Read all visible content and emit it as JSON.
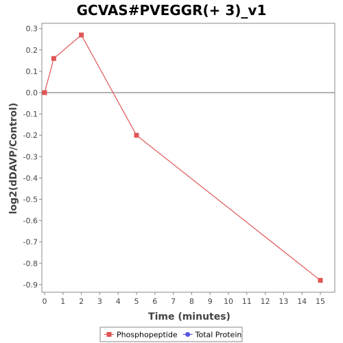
{
  "chart_data": {
    "type": "line",
    "title": "GCVAS#PVEGGR(+ 3)_v1",
    "xlabel": "Time (minutes)",
    "ylabel": "log2(dDAVP/Control)",
    "xlim": [
      0,
      16
    ],
    "ylim": [
      -0.95,
      0.33
    ],
    "xticks": [
      0,
      1,
      2,
      3,
      4,
      5,
      6,
      7,
      8,
      9,
      10,
      11,
      12,
      13,
      14,
      15
    ],
    "xtick_labels": [
      "0",
      "1",
      "2",
      "3",
      "4",
      "5",
      "6",
      "7",
      "8",
      "9",
      "10",
      "11",
      "12",
      "13",
      "14",
      "15"
    ],
    "yticks": [
      0.3,
      0.2,
      0.1,
      0.0,
      -0.1,
      -0.2,
      -0.3,
      -0.4,
      -0.5,
      -0.6,
      -0.7,
      -0.8,
      -0.9
    ],
    "ytick_labels": [
      "0.3",
      "0.2",
      "0.1",
      "0.0",
      "-0.1",
      "-0.2",
      "-0.3",
      "-0.4",
      "-0.5",
      "-0.6",
      "-0.7",
      "-0.8",
      "-0.9"
    ],
    "grid": false,
    "zero_line": true,
    "legend_position": "bottom-center",
    "series": [
      {
        "name": "Phosphopeptide",
        "color": "#e05555",
        "marker": "square",
        "x": [
          0,
          0.5,
          2,
          5,
          15
        ],
        "y": [
          0.0,
          0.16,
          0.27,
          -0.2,
          -0.88
        ]
      },
      {
        "name": "Total Protein",
        "color": "#5555e0",
        "marker": "circle",
        "x": [],
        "y": []
      }
    ]
  }
}
